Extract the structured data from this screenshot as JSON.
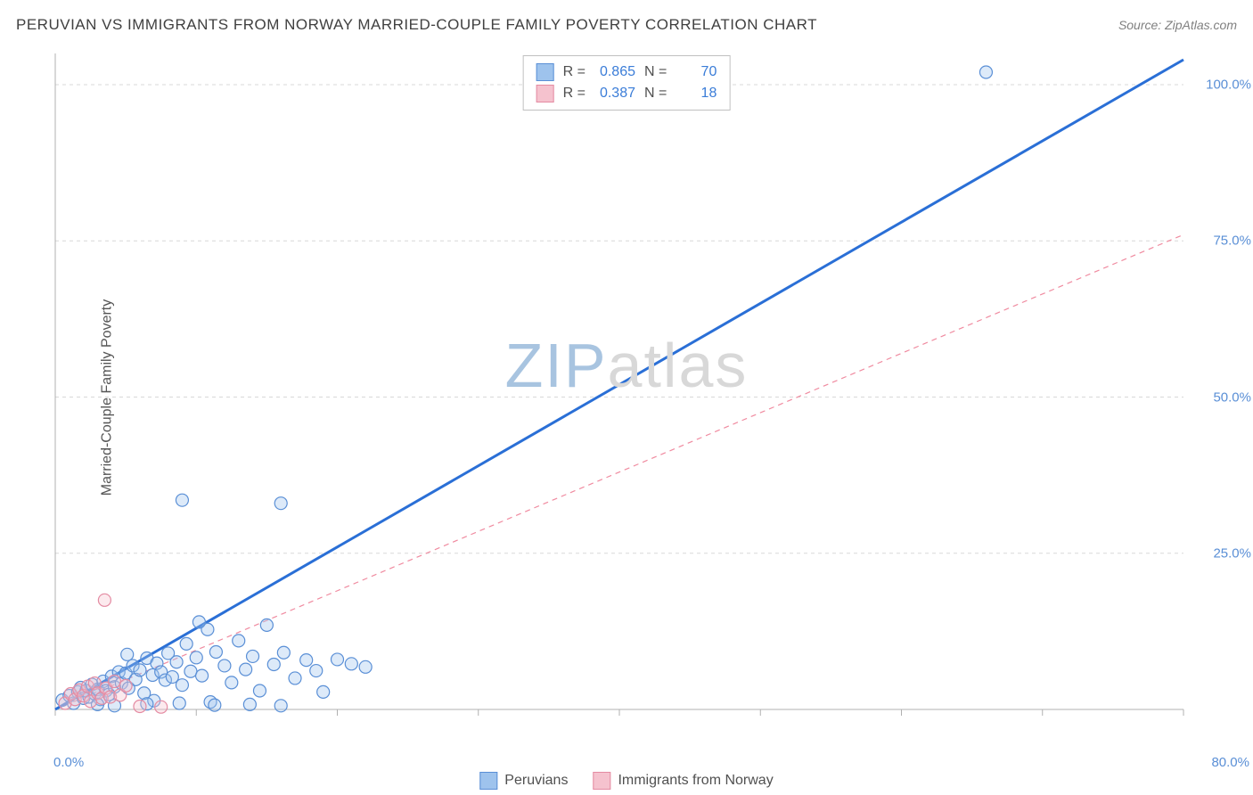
{
  "title": "PERUVIAN VS IMMIGRANTS FROM NORWAY MARRIED-COUPLE FAMILY POVERTY CORRELATION CHART",
  "source_prefix": "Source: ",
  "source_name": "ZipAtlas.com",
  "y_axis_label": "Married-Couple Family Poverty",
  "watermark_part1": "ZIP",
  "watermark_part2": "atlas",
  "chart": {
    "type": "scatter",
    "xlim": [
      0,
      80
    ],
    "ylim": [
      0,
      105
    ],
    "x_tick_positions": [
      0,
      10,
      20,
      30,
      40,
      50,
      60,
      70,
      80
    ],
    "x_tick_labels_shown": {
      "0": "0.0%",
      "80": "80.0%"
    },
    "y_gridlines": [
      25,
      50,
      75,
      100
    ],
    "y_tick_labels": {
      "25": "25.0%",
      "50": "50.0%",
      "75": "75.0%",
      "100": "100.0%"
    },
    "background_color": "#ffffff",
    "grid_color": "#d8d8d8",
    "grid_dash": "4,4",
    "axis_color": "#b0b0b0",
    "marker_radius": 7,
    "marker_fill_opacity": 0.35,
    "marker_stroke_width": 1.2,
    "series": [
      {
        "name": "Peruvians",
        "color_fill": "#9ec3ed",
        "color_stroke": "#5a8fd6",
        "R": "0.865",
        "N": "70",
        "trend": {
          "x1": 0,
          "y1": 0,
          "x2": 80,
          "y2": 104,
          "stroke": "#2a6fd6",
          "width": 3,
          "dash": "none"
        },
        "points": [
          [
            0.5,
            1.5
          ],
          [
            1.0,
            2.2
          ],
          [
            1.3,
            1.0
          ],
          [
            1.6,
            2.8
          ],
          [
            1.8,
            3.5
          ],
          [
            2.0,
            1.8
          ],
          [
            2.2,
            3.0
          ],
          [
            2.4,
            2.0
          ],
          [
            2.6,
            4.0
          ],
          [
            2.8,
            2.5
          ],
          [
            3.0,
            3.2
          ],
          [
            3.2,
            1.6
          ],
          [
            3.4,
            4.5
          ],
          [
            3.6,
            3.0
          ],
          [
            3.8,
            2.4
          ],
          [
            4.0,
            5.3
          ],
          [
            4.2,
            3.6
          ],
          [
            4.5,
            6.0
          ],
          [
            4.7,
            4.2
          ],
          [
            5.0,
            5.8
          ],
          [
            5.2,
            3.4
          ],
          [
            5.5,
            7.0
          ],
          [
            5.7,
            4.8
          ],
          [
            6.0,
            6.3
          ],
          [
            6.3,
            2.6
          ],
          [
            6.5,
            8.2
          ],
          [
            6.9,
            5.5
          ],
          [
            7.0,
            1.4
          ],
          [
            7.2,
            7.4
          ],
          [
            7.5,
            6.0
          ],
          [
            7.8,
            4.7
          ],
          [
            8.0,
            9.0
          ],
          [
            8.3,
            5.2
          ],
          [
            8.6,
            7.6
          ],
          [
            9.0,
            3.9
          ],
          [
            9.3,
            10.5
          ],
          [
            9.6,
            6.1
          ],
          [
            10.0,
            8.3
          ],
          [
            10.4,
            5.4
          ],
          [
            10.8,
            12.8
          ],
          [
            11.0,
            1.2
          ],
          [
            11.4,
            9.2
          ],
          [
            12.0,
            7.0
          ],
          [
            12.5,
            4.3
          ],
          [
            13.0,
            11.0
          ],
          [
            13.5,
            6.4
          ],
          [
            14.0,
            8.5
          ],
          [
            14.5,
            3.0
          ],
          [
            15.0,
            13.5
          ],
          [
            15.5,
            7.2
          ],
          [
            16.2,
            9.1
          ],
          [
            17.0,
            5.0
          ],
          [
            17.8,
            7.9
          ],
          [
            18.5,
            6.2
          ],
          [
            19.0,
            2.8
          ],
          [
            20.0,
            8.0
          ],
          [
            21.0,
            7.3
          ],
          [
            22.0,
            6.8
          ],
          [
            10.2,
            14.0
          ],
          [
            5.1,
            8.8
          ],
          [
            9.0,
            33.5
          ],
          [
            16.0,
            33.0
          ],
          [
            66.0,
            102.0
          ],
          [
            3.0,
            0.8
          ],
          [
            4.2,
            0.6
          ],
          [
            6.5,
            0.9
          ],
          [
            8.8,
            1.0
          ],
          [
            11.3,
            0.7
          ],
          [
            13.8,
            0.8
          ],
          [
            16.0,
            0.6
          ]
        ]
      },
      {
        "name": "Immigrants from Norway",
        "color_fill": "#f5c2ce",
        "color_stroke": "#e48ba2",
        "R": "0.387",
        "N": "18",
        "trend": {
          "x1": 0,
          "y1": 0,
          "x2": 80,
          "y2": 76,
          "stroke": "#f08ba0",
          "width": 1.2,
          "dash": "6,5"
        },
        "points": [
          [
            0.7,
            1.0
          ],
          [
            1.1,
            2.5
          ],
          [
            1.4,
            1.6
          ],
          [
            1.7,
            3.1
          ],
          [
            2.0,
            2.2
          ],
          [
            2.3,
            3.7
          ],
          [
            2.5,
            1.3
          ],
          [
            2.8,
            4.2
          ],
          [
            3.0,
            2.6
          ],
          [
            3.3,
            1.8
          ],
          [
            3.6,
            3.4
          ],
          [
            3.9,
            2.0
          ],
          [
            4.2,
            4.5
          ],
          [
            4.6,
            2.3
          ],
          [
            5.0,
            3.8
          ],
          [
            3.5,
            17.5
          ],
          [
            6.0,
            0.5
          ],
          [
            7.5,
            0.4
          ]
        ]
      }
    ]
  },
  "legend_bottom": [
    {
      "label": "Peruvians",
      "fill": "#9ec3ed",
      "stroke": "#5a8fd6"
    },
    {
      "label": "Immigrants from Norway",
      "fill": "#f5c2ce",
      "stroke": "#e48ba2"
    }
  ],
  "legend_top_labels": {
    "R": "R =",
    "N": "N ="
  }
}
